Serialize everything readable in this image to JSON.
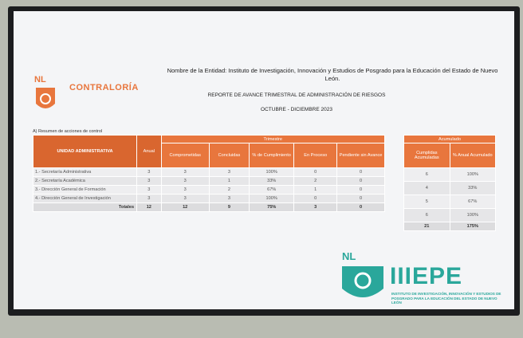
{
  "logo": {
    "mark": "NL",
    "name": "CONTRALORÍA"
  },
  "header": {
    "entity_name": "Nombre de la Entidad: Instituto de Investigación, Innovación y Estudios de Posgrado para la Educación del Estado de Nuevo León.",
    "report_title": "REPORTE DE AVANCE TRIMESTRAL DE ADMINISTRACIÓN DE RIESGOS",
    "period": "OCTUBRE - DICIEMBRE 2023"
  },
  "section_label": "A) Resumen de acciones de control",
  "table": {
    "unit_header": "UNIDAD ADMINISTRATIVA",
    "annual_header": "Anual",
    "group_header": "Trimestre",
    "columns": [
      "Comprometidas",
      "Concluidas",
      "% de Cumplimiento",
      "En Proceso",
      "Pendiente sin Avance"
    ],
    "rows": [
      {
        "unit": "1.- Secretaría Administrativa",
        "annual": 3,
        "cells": [
          3,
          3,
          "100%",
          0,
          0
        ]
      },
      {
        "unit": "2.- Secretaría Académica",
        "annual": 3,
        "cells": [
          3,
          1,
          "33%",
          2,
          0
        ]
      },
      {
        "unit": "3.- Dirección General de Formación",
        "annual": 3,
        "cells": [
          3,
          2,
          "67%",
          1,
          0
        ]
      },
      {
        "unit": "4.- Dirección General de Investigación",
        "annual": 3,
        "cells": [
          3,
          3,
          "100%",
          0,
          0
        ]
      }
    ],
    "totals": {
      "label": "Totales",
      "annual": 12,
      "cells": [
        12,
        9,
        "75%",
        3,
        0
      ]
    }
  },
  "accumulated": {
    "group_header": "Acumulado",
    "columns": [
      "Cumplidas Acumuladas",
      "% Anual Acumulado"
    ],
    "rows": [
      [
        6,
        "100%"
      ],
      [
        4,
        "33%"
      ],
      [
        5,
        "67%"
      ],
      [
        6,
        "100%"
      ]
    ],
    "totals": [
      21,
      "175%"
    ]
  },
  "footer_logo": {
    "mark": "NL",
    "name": "IIIEPE",
    "tagline": "INSTITUTO DE INVESTIGACIÓN, INNOVACIÓN Y ESTUDIOS DE POSGRADO PARA LA EDUCACIÓN DEL ESTADO DE NUEVO LEÓN"
  }
}
